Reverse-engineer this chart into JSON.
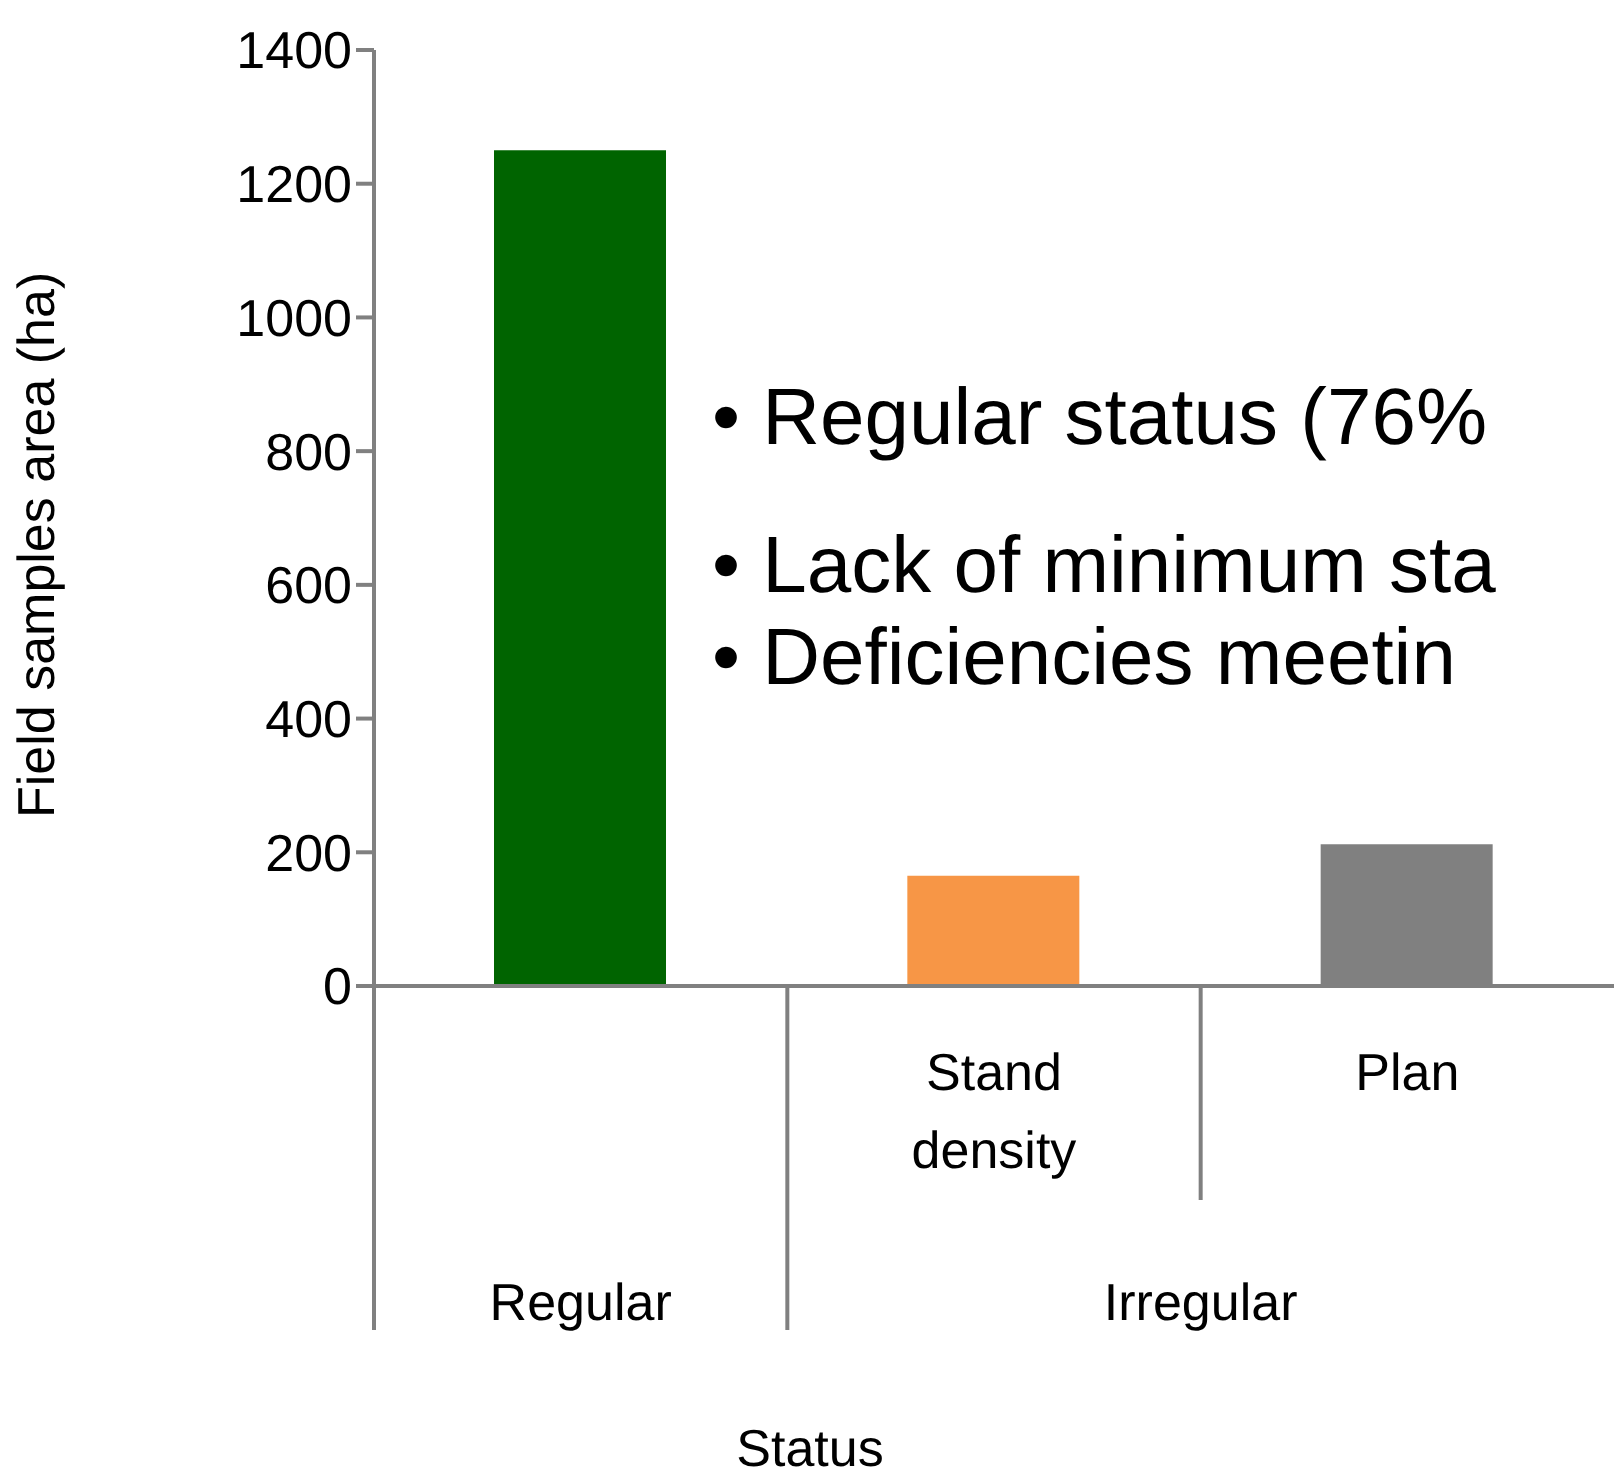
{
  "chart_data": {
    "type": "bar",
    "xlabel": "Status",
    "ylabel": "Field samples area (ha)",
    "categories": [
      null,
      "Stand density",
      "Plan"
    ],
    "values": [
      1250,
      165,
      212
    ],
    "colors": [
      "#006400",
      "#f79646",
      "#808080"
    ],
    "ylim": [
      0,
      1400
    ],
    "yticks": [
      0,
      200,
      400,
      600,
      800,
      1000,
      1200,
      1400
    ],
    "annotations": [
      "• Regular status (76%",
      "• Lack of minimum sta",
      "• Deficiencies meetin",
      "Regular",
      "Irregular"
    ]
  }
}
